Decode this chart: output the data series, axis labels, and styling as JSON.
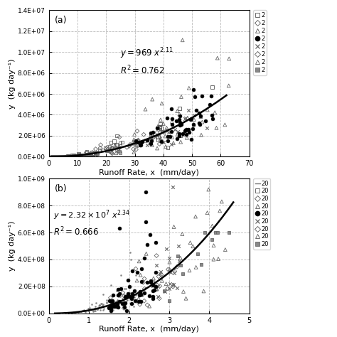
{
  "panel_a": {
    "label": "(a)",
    "xlabel": "Runoff Rate, x  (mm/day)",
    "ylabel": "y  (kg day⁻¹)",
    "xlim": [
      0,
      70
    ],
    "ylim": [
      0,
      14000000.0
    ],
    "yticks": [
      0,
      2000000,
      4000000,
      6000000,
      8000000,
      10000000,
      12000000,
      14000000
    ],
    "ytick_labels": [
      "0.0E+00",
      "2.0E+06",
      "4.0E+06",
      "6.0E+06",
      "8.0E+06",
      "1.0E+07",
      "1.2E+07",
      "1.4E+07"
    ],
    "xticks": [
      0,
      10,
      20,
      30,
      40,
      50,
      60,
      70
    ],
    "power_a": 969,
    "power_b": 2.11,
    "fit_xstart": 0.3,
    "fit_xmax": 62,
    "eq_x": 25,
    "eq_y": 9200000.0,
    "r2_x": 25,
    "r2_y": 7700000.0
  },
  "panel_b": {
    "label": "(b)",
    "xlabel": "Runoff Rate, x  (mm/day)",
    "ylabel": "y  (kg day⁻¹)",
    "xlim": [
      0,
      5
    ],
    "ylim": [
      0,
      1000000000.0
    ],
    "yticks": [
      0,
      200000000,
      400000000,
      600000000,
      800000000,
      1000000000
    ],
    "ytick_labels": [
      "0.0E+00",
      "2.0E+08",
      "4.0E+08",
      "6.0E+08",
      "8.0E+08",
      "1.0E+09"
    ],
    "xticks": [
      0,
      1,
      2,
      3,
      4,
      5
    ],
    "power_a": 23200000,
    "power_b": 2.34,
    "fit_xstart": 0.15,
    "fit_xmax": 4.6,
    "eq_x": 0.12,
    "eq_y": 680000000.0,
    "r2_x": 0.12,
    "r2_y": 560000000.0
  },
  "background_color": "#ffffff",
  "grid_color": "#bbbbbb"
}
